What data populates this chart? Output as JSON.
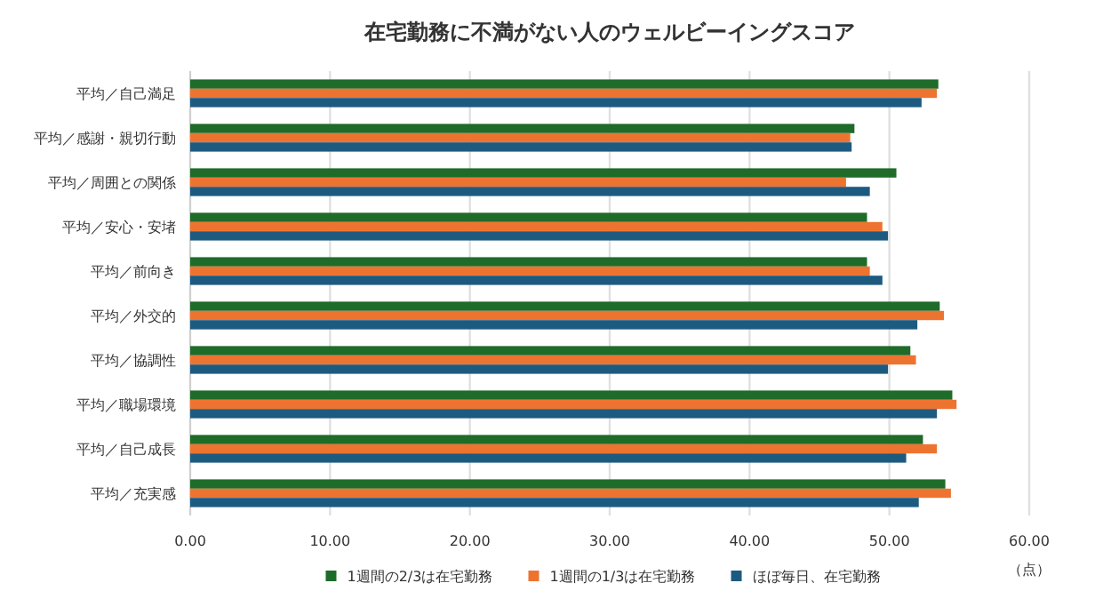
{
  "chart_data": {
    "type": "bar",
    "orientation": "horizontal",
    "title": "在宅勤務に不満がない人のウェルビーイングスコア",
    "xlabel": "（点）",
    "categories": [
      "平均／自己満足",
      "平均／感謝・親切行動",
      "平均／周囲との関係",
      "平均／安心・安堵",
      "平均／前向き",
      "平均／外交的",
      "平均／協調性",
      "平均／職場環境",
      "平均／自己成長",
      "平均／充実感"
    ],
    "series": [
      {
        "name": "1週間の2/3は在宅勤務",
        "color": "#1e6b2a",
        "values": [
          53.5,
          47.5,
          50.5,
          48.4,
          48.4,
          53.6,
          51.5,
          54.5,
          52.4,
          54.0
        ]
      },
      {
        "name": "1週間の1/3は在宅勤務",
        "color": "#ed7430",
        "values": [
          53.4,
          47.2,
          46.9,
          49.5,
          48.6,
          53.9,
          51.9,
          54.8,
          53.4,
          54.4
        ]
      },
      {
        "name": "ほぼ毎日、在宅勤務",
        "color": "#1d5a80",
        "values": [
          52.3,
          47.3,
          48.6,
          49.9,
          49.5,
          52.0,
          49.9,
          53.4,
          51.2,
          52.1
        ]
      }
    ],
    "xlim": [
      0,
      60
    ],
    "xticks": [
      {
        "value": 0,
        "label": "0.00"
      },
      {
        "value": 10,
        "label": "10.00"
      },
      {
        "value": 20,
        "label": "20.00"
      },
      {
        "value": 30,
        "label": "30.00"
      },
      {
        "value": 40,
        "label": "40.00"
      },
      {
        "value": 50,
        "label": "50.00"
      },
      {
        "value": 60,
        "label": "60.00"
      }
    ],
    "grid": "x",
    "legend": "bottom"
  }
}
